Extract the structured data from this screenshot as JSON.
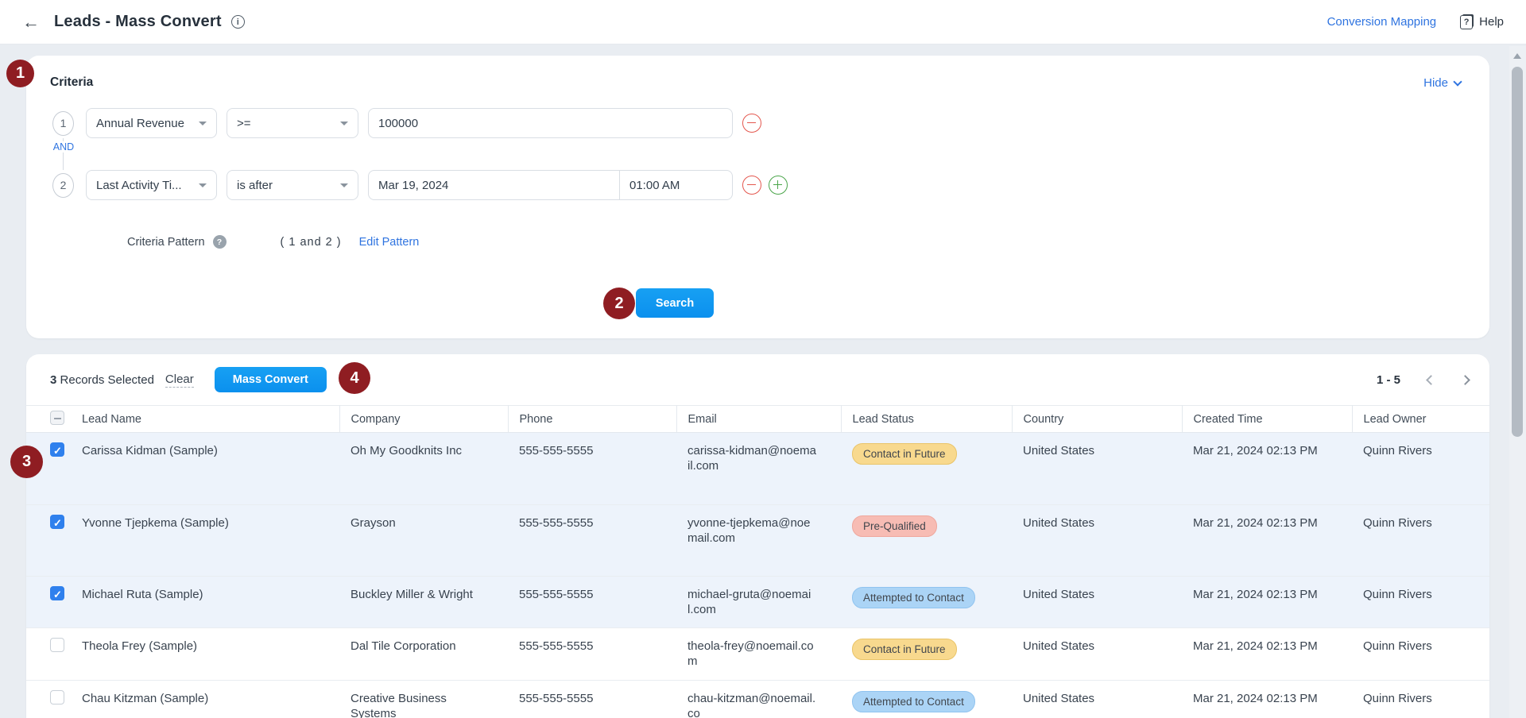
{
  "header": {
    "title": "Leads - Mass Convert",
    "conversion_mapping_label": "Conversion Mapping",
    "help_label": "Help"
  },
  "annotations": {
    "a1": "1",
    "a2": "2",
    "a3": "3",
    "a4": "4"
  },
  "criteria": {
    "title": "Criteria",
    "hide_label": "Hide",
    "and_label": "AND",
    "rows": [
      {
        "index": "1",
        "field": "Annual Revenue",
        "operator": ">=",
        "value": "100000"
      },
      {
        "index": "2",
        "field": "Last Activity Ti...",
        "operator": "is after",
        "date": "Mar 19, 2024",
        "time": "01:00 AM"
      }
    ],
    "pattern_label": "Criteria Pattern",
    "pattern_value": "( 1 and 2 )",
    "edit_pattern_label": "Edit Pattern",
    "search_label": "Search"
  },
  "toolbar": {
    "selected_count": "3",
    "selected_text": "Records Selected",
    "clear_label": "Clear",
    "mass_convert_label": "Mass Convert",
    "page_range": "1 - 5"
  },
  "table": {
    "columns": {
      "lead_name": "Lead Name",
      "company": "Company",
      "phone": "Phone",
      "email": "Email",
      "lead_status": "Lead Status",
      "country": "Country",
      "created_time": "Created Time",
      "lead_owner": "Lead Owner"
    },
    "rows": [
      {
        "selected": true,
        "lead_name": "Carissa Kidman (Sample)",
        "company": "Oh My Goodknits Inc",
        "phone": "555-555-5555",
        "email": "carissa-kidman@noemail.com",
        "lead_status": "Contact in Future",
        "status_type": "warning",
        "country": "United States",
        "created_time": "Mar 21, 2024 02:13 PM",
        "lead_owner": "Quinn Rivers"
      },
      {
        "selected": true,
        "lead_name": "Yvonne Tjepkema (Sample)",
        "company": "Grayson",
        "phone": "555-555-5555",
        "email": "yvonne-tjepkema@noemail.com",
        "lead_status": "Pre-Qualified",
        "status_type": "danger",
        "country": "United States",
        "created_time": "Mar 21, 2024 02:13 PM",
        "lead_owner": "Quinn Rivers"
      },
      {
        "selected": true,
        "lead_name": "Michael Ruta (Sample)",
        "company": "Buckley Miller & Wright",
        "phone": "555-555-5555",
        "email": "michael-gruta@noemail.com",
        "lead_status": "Attempted to Contact",
        "status_type": "info",
        "country": "United States",
        "created_time": "Mar 21, 2024 02:13 PM",
        "lead_owner": "Quinn Rivers"
      },
      {
        "selected": false,
        "lead_name": "Theola Frey (Sample)",
        "company": "Dal Tile Corporation",
        "phone": "555-555-5555",
        "email": "theola-frey@noemail.com",
        "lead_status": "Contact in Future",
        "status_type": "warning",
        "country": "United States",
        "created_time": "Mar 21, 2024 02:13 PM",
        "lead_owner": "Quinn Rivers"
      },
      {
        "selected": false,
        "lead_name": "Chau Kitzman (Sample)",
        "company": "Creative Business Systems",
        "phone": "555-555-5555",
        "email": "chau-kitzman@noemail.co",
        "lead_status": "Attempted to Contact",
        "status_type": "info",
        "country": "United States",
        "created_time": "Mar 21, 2024 02:13 PM",
        "lead_owner": "Quinn Rivers"
      }
    ]
  },
  "colors": {
    "primary_button": "#0D9BF2",
    "link_blue": "#2F74E0",
    "annotation_red": "#8F1D22",
    "selected_row_bg": "#EDF3FB",
    "pill_warning_bg": "#F8D98E",
    "pill_danger_bg": "#F7BCB4",
    "pill_info_bg": "#ABD4F6",
    "checkbox_checked": "#2F80ED"
  }
}
